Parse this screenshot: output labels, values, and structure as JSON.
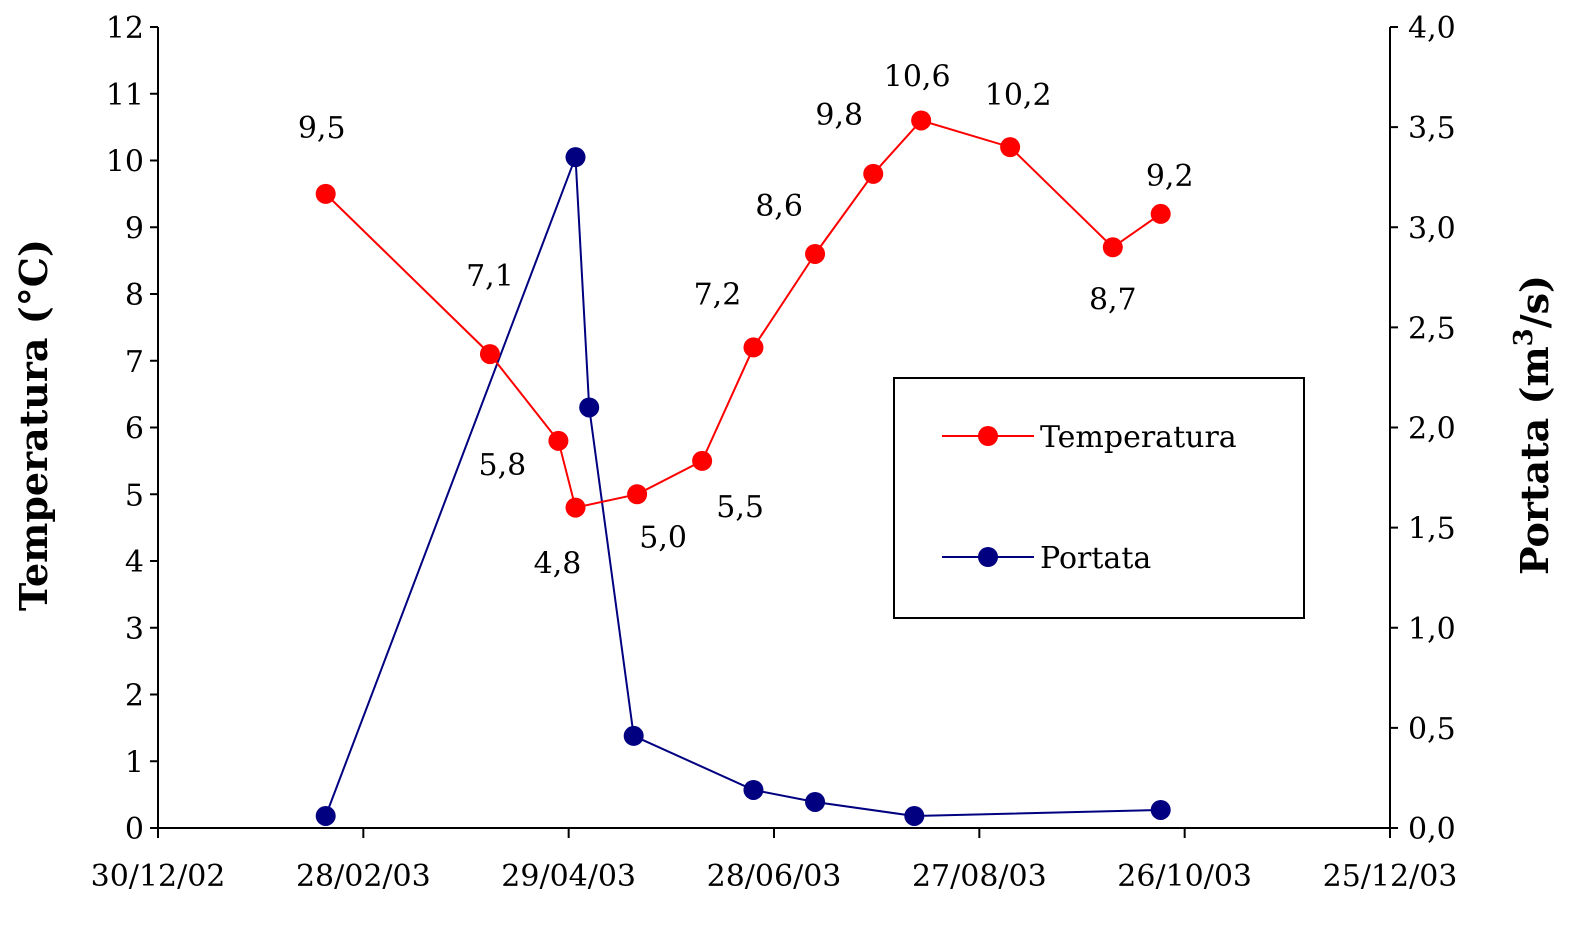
{
  "chart_data": {
    "type": "line",
    "title": "",
    "y_left_label": "Temperatura (°C)",
    "y_right_label_base": "Portata (m",
    "y_right_label_sup": "3",
    "y_right_label_tail": "/s)",
    "x_axis": {
      "type": "date",
      "min": "2002-12-30",
      "max": "2003-12-25",
      "tick_labels": [
        "30/12/02",
        "28/02/03",
        "29/04/03",
        "28/06/03",
        "27/08/03",
        "26/10/03",
        "25/12/03"
      ]
    },
    "y_left": {
      "min": 0,
      "max": 12,
      "step": 1,
      "tick_labels": [
        "0",
        "1",
        "2",
        "3",
        "4",
        "5",
        "6",
        "7",
        "8",
        "9",
        "10",
        "11",
        "12"
      ]
    },
    "y_right": {
      "min": 0,
      "max": 4,
      "step": 0.5,
      "tick_labels": [
        "0,0",
        "0,5",
        "1,0",
        "1,5",
        "2,0",
        "2,5",
        "3,0",
        "3,5",
        "4,0"
      ]
    },
    "grid": false,
    "legend_position": "right-middle",
    "series": [
      {
        "name": "Temperatura",
        "axis": "left",
        "color": "#ff0000",
        "points": [
          {
            "date": "2003-02-17",
            "value": 9.5,
            "label": "9,5"
          },
          {
            "date": "2003-04-06",
            "value": 7.1,
            "label": "7,1"
          },
          {
            "date": "2003-04-26",
            "value": 5.8,
            "label": "5,8"
          },
          {
            "date": "2003-05-01",
            "value": 4.8,
            "label": "4,8"
          },
          {
            "date": "2003-05-19",
            "value": 5.0,
            "label": "5,0"
          },
          {
            "date": "2003-06-07",
            "value": 5.5,
            "label": "5,5"
          },
          {
            "date": "2003-06-22",
            "value": 7.2,
            "label": "7,2"
          },
          {
            "date": "2003-07-10",
            "value": 8.6,
            "label": "8,6"
          },
          {
            "date": "2003-07-27",
            "value": 9.8,
            "label": "9,8"
          },
          {
            "date": "2003-08-10",
            "value": 10.6,
            "label": "10,6"
          },
          {
            "date": "2003-09-05",
            "value": 10.2,
            "label": "10,2"
          },
          {
            "date": "2003-10-05",
            "value": 8.7,
            "label": "8,7"
          },
          {
            "date": "2003-10-19",
            "value": 9.2,
            "label": "9,2"
          }
        ]
      },
      {
        "name": "Portata",
        "axis": "right",
        "color": "#000080",
        "points": [
          {
            "date": "2003-02-17",
            "value": 0.06
          },
          {
            "date": "2003-05-01",
            "value": 3.35
          },
          {
            "date": "2003-05-05",
            "value": 2.1
          },
          {
            "date": "2003-05-18",
            "value": 0.46
          },
          {
            "date": "2003-06-22",
            "value": 0.19
          },
          {
            "date": "2003-07-10",
            "value": 0.13
          },
          {
            "date": "2003-08-08",
            "value": 0.06
          },
          {
            "date": "2003-10-19",
            "value": 0.09
          }
        ]
      }
    ]
  }
}
